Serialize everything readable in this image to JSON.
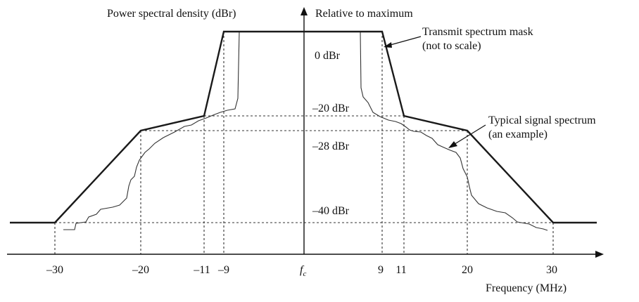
{
  "diagram": {
    "y_axis_title": "Power spectral density (dBr)",
    "y_axis_note": "Relative to maximum",
    "x_axis_title": "Frequency (MHz)",
    "center_label": "f",
    "center_sub": "c",
    "mask_label_line1": "Transmit spectrum mask",
    "mask_label_line2": "(not to scale)",
    "signal_label_line1": "Typical signal spectrum",
    "signal_label_line2": "(an example)",
    "level_labels": [
      "0 dBr",
      "–20 dBr",
      "–28 dBr",
      "–40 dBr"
    ],
    "x_ticks": [
      "–30",
      "–20",
      "–11",
      "–9",
      "9",
      "11",
      "20",
      "30"
    ]
  },
  "chart_data": {
    "type": "line",
    "xlabel": "Frequency (MHz)",
    "ylabel": "Power spectral density (dBr)",
    "series": [
      {
        "name": "Transmit spectrum mask",
        "x": [
          -30,
          -20,
          -11,
          -9,
          9,
          11,
          20,
          30
        ],
        "y": [
          -40,
          -28,
          -20,
          0,
          0,
          -20,
          -28,
          -40
        ]
      }
    ],
    "colors": {
      "mask": "#1a1a1a",
      "signal": "#333333",
      "guides": "#333333"
    }
  }
}
